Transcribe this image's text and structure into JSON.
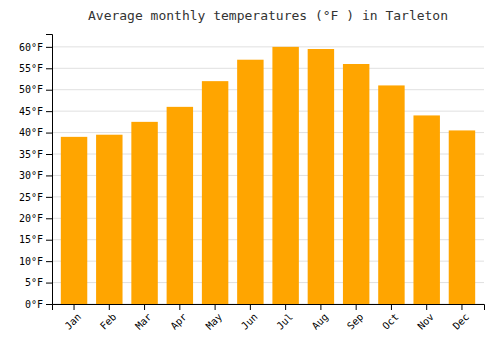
{
  "chart_data": {
    "type": "bar",
    "title": "Average monthly temperatures (°F ) in Tarleton",
    "categories": [
      "Jan",
      "Feb",
      "Mar",
      "Apr",
      "May",
      "Jun",
      "Jul",
      "Aug",
      "Sep",
      "Oct",
      "Nov",
      "Dec"
    ],
    "values": [
      39,
      39.5,
      42.5,
      46,
      52,
      57,
      60,
      59.5,
      56,
      51,
      44,
      40.5
    ],
    "color": "#FFA500",
    "ylim": [
      0,
      63
    ],
    "yticks": [
      {
        "value": 0,
        "label": "0°F"
      },
      {
        "value": 5,
        "label": "5°F"
      },
      {
        "value": 10,
        "label": "10°F"
      },
      {
        "value": 15,
        "label": "15°F"
      },
      {
        "value": 20,
        "label": "20°F"
      },
      {
        "value": 25,
        "label": "25°F"
      },
      {
        "value": 30,
        "label": "30°F"
      },
      {
        "value": 35,
        "label": "35°F"
      },
      {
        "value": 40,
        "label": "40°F"
      },
      {
        "value": 45,
        "label": "45°F"
      },
      {
        "value": 50,
        "label": "50°F"
      },
      {
        "value": 55,
        "label": "55°F"
      },
      {
        "value": 60,
        "label": "60°F"
      }
    ],
    "grid": true
  }
}
